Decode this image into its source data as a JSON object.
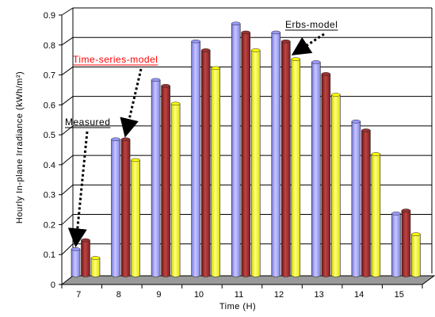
{
  "chart_data": {
    "type": "bar",
    "title": "",
    "xlabel": "Time (H)",
    "ylabel": "Hourly In-plane Irradiance (kWh/m²)",
    "ylim": [
      0,
      0.9
    ],
    "yticks": [
      "0",
      "0.1",
      "0.2",
      "0.3",
      "0.4",
      "0.5",
      "0.6",
      "0.7",
      "0.8",
      "0.9"
    ],
    "categories": [
      "7",
      "8",
      "9",
      "10",
      "11",
      "12",
      "13",
      "14",
      "15"
    ],
    "grid": true,
    "series": [
      {
        "name": "Measured",
        "color": "#9999ff",
        "values": [
          0.09,
          0.46,
          0.66,
          0.79,
          0.85,
          0.82,
          0.72,
          0.52,
          0.21
        ]
      },
      {
        "name": "Time-series-model",
        "color": "#993333",
        "values": [
          0.12,
          0.46,
          0.64,
          0.76,
          0.82,
          0.79,
          0.68,
          0.49,
          0.22
        ]
      },
      {
        "name": "Erbs-model",
        "color": "#ffff00",
        "values": [
          0.06,
          0.39,
          0.58,
          0.7,
          0.76,
          0.73,
          0.61,
          0.41,
          0.14
        ]
      }
    ],
    "annotations": [
      {
        "text": "Measured",
        "color": "#000000",
        "series": 0,
        "category": "7"
      },
      {
        "text": "Time-series-model",
        "color": "#ff0000",
        "series": 1,
        "category": "8"
      },
      {
        "text": "Erbs-model",
        "color": "#000000",
        "series": 2,
        "category": "12"
      }
    ]
  }
}
